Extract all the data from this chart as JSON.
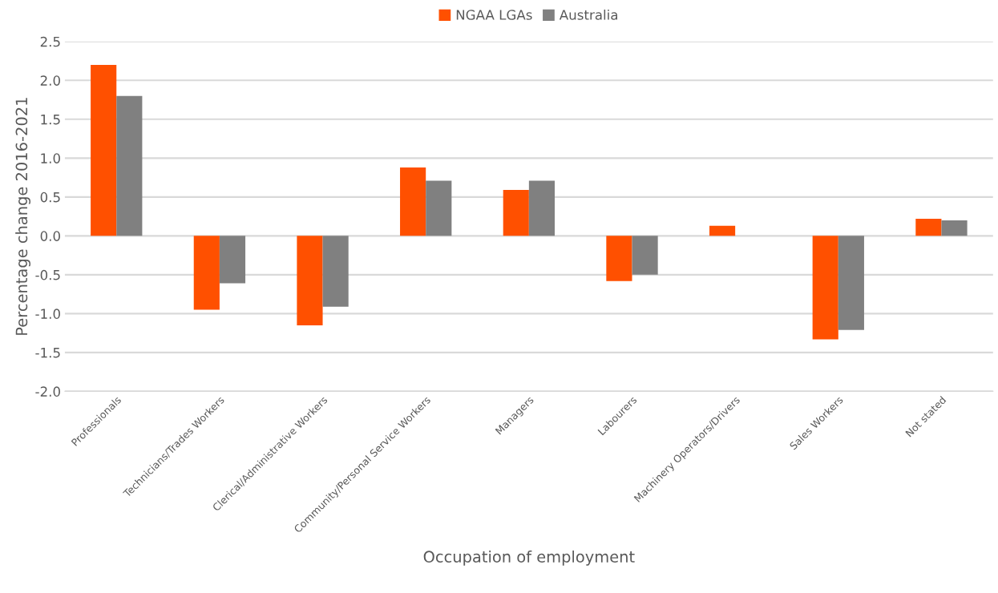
{
  "chart_data": {
    "type": "bar",
    "xlabel": "Occupation of employment",
    "ylabel": "Percentage change 2016-2021",
    "categories": [
      "Professionals",
      "Technicians/Trades Workers",
      "Clerical/Administrative Workers",
      "Community/Personal Service Workers",
      "Managers",
      "Labourers",
      "Machinery Operators/Drivers",
      "Sales Workers",
      "Not stated"
    ],
    "series": [
      {
        "name": "NGAA LGAs",
        "color": "#ff5000",
        "values": [
          2.2,
          -0.95,
          -1.15,
          0.88,
          0.59,
          -0.58,
          0.13,
          -1.33,
          0.22
        ]
      },
      {
        "name": "Australia",
        "color": "#808080",
        "values": [
          1.8,
          -0.61,
          -0.91,
          0.71,
          0.71,
          -0.5,
          null,
          -1.21,
          0.2
        ]
      }
    ],
    "ylim": [
      -2.0,
      2.5
    ],
    "yticks": [
      {
        "value": -2.0,
        "label": "-2.0"
      },
      {
        "value": -1.5,
        "label": "-1.5"
      },
      {
        "value": -1.0,
        "label": "-1.0"
      },
      {
        "value": -0.5,
        "label": "-0.5"
      },
      {
        "value": 0.0,
        "label": "0.0"
      },
      {
        "value": 0.5,
        "label": "0.5"
      },
      {
        "value": 1.0,
        "label": "1.0"
      },
      {
        "value": 1.5,
        "label": "1.5"
      },
      {
        "value": 2.0,
        "label": "2.0"
      },
      {
        "value": 2.5,
        "label": "2.5"
      }
    ],
    "grid": "y",
    "legend": "top"
  }
}
